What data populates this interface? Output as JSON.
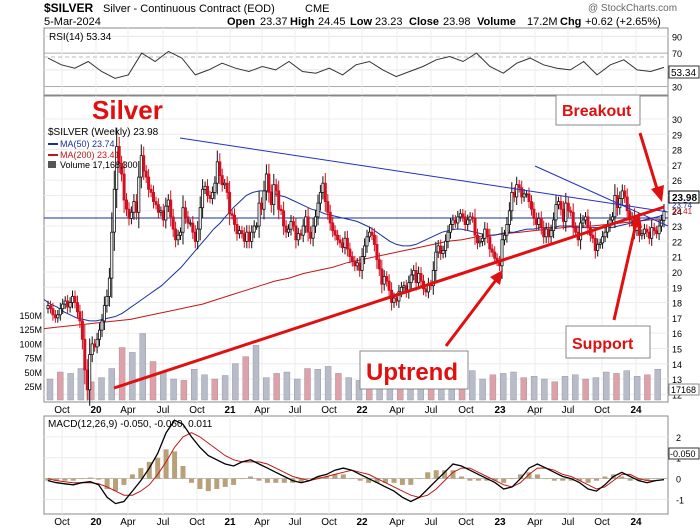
{
  "header": {
    "symbol": "$SILVER",
    "name": "Silver - Continuous Contract (EOD)",
    "exchange": "CME",
    "date": "5-Mar-2024",
    "open_label": "Open",
    "open": "23.37",
    "high_label": "High",
    "high": "24.45",
    "low_label": "Low",
    "low": "23.23",
    "close_label": "Close",
    "close": "23.98",
    "volume_label": "Volume",
    "volume": "17.2M",
    "chg_label": "Chg",
    "chg": "+0.62 (+2.65%)",
    "watermark": "@ StockCharts.com"
  },
  "colors": {
    "up": "#111111",
    "down": "#d01020",
    "ma50": "#1a2fa0",
    "ma200": "#c01818",
    "annotation": "#e01010",
    "volume_up": "#b8bcc8",
    "volume_down": "#e0a0a8",
    "rsi": "#333333",
    "macd": "#000000",
    "signal": "#c01818",
    "hist": "#b8a078"
  },
  "x_axis": {
    "labels": [
      "Oct",
      "20",
      "Apr",
      "Jul",
      "Oct",
      "21",
      "Apr",
      "Jul",
      "Oct",
      "22",
      "Apr",
      "Jul",
      "Oct",
      "23",
      "Apr",
      "Jul",
      "Oct",
      "24"
    ],
    "bold": [
      "20",
      "21",
      "22",
      "23",
      "24"
    ]
  },
  "chart_data": [
    {
      "type": "line",
      "panel": "RSI",
      "legend": "RSI(14) 53.34",
      "value_label": "53.34",
      "yticks": [
        90,
        70,
        50,
        30
      ],
      "ylim": [
        20,
        100
      ],
      "reference_levels": [
        30,
        70
      ],
      "values": [
        64,
        56,
        52,
        60,
        48,
        40,
        44,
        70,
        60,
        72,
        64,
        44,
        50,
        58,
        52,
        48,
        54,
        50,
        60,
        48,
        46,
        52,
        44,
        56,
        60,
        50,
        42,
        48,
        54,
        62,
        66,
        60,
        70,
        54,
        46,
        58,
        64,
        56,
        52,
        50,
        60,
        44,
        56,
        62,
        50,
        48,
        53
      ]
    },
    {
      "type": "candlestick",
      "panel": "Price",
      "title": "Silver",
      "legend": "$SILVER (Weekly) 23.98",
      "ma50_label": "MA(50) 23.74",
      "ma200_label": "MA(200) 23.41",
      "volume_label": "Volume 17,168,300",
      "last_price_label": "23.98",
      "ma_value_labels": [
        "23.74",
        "23.41"
      ],
      "volume_last_label": "17168",
      "price_ticks": [
        30,
        29,
        28,
        27,
        26,
        25,
        24,
        23,
        22,
        21,
        20,
        19,
        18,
        17,
        16,
        15,
        14,
        13,
        12
      ],
      "volume_ticks": [
        "150M",
        "125M",
        "100M",
        "75M",
        "50M",
        "25M"
      ],
      "ylim": [
        11.5,
        31.5
      ],
      "close": [
        17.8,
        17.6,
        17.2,
        17.0,
        17.2,
        17.6,
        17.9,
        18.1,
        17.7,
        18.0,
        18.4,
        18.0,
        17.4,
        16.8,
        15.6,
        13.6,
        12.3,
        14.6,
        15.3,
        15.1,
        15.6,
        16.2,
        16.8,
        17.8,
        18.4,
        19.6,
        22.6,
        25.4,
        28.2,
        27.1,
        26.4,
        24.7,
        24.1,
        23.5,
        23.9,
        24.6,
        23.9,
        26.2,
        27.6,
        26.6,
        26.2,
        25.4,
        25.2,
        24.6,
        24.4,
        23.9,
        24.0,
        23.4,
        24.3,
        24.7,
        23.6,
        22.8,
        22.1,
        22.4,
        22.6,
        24.2,
        23.6,
        23.2,
        23.2,
        22.6,
        22.0,
        22.8,
        24.2,
        25.4,
        25.6,
        25.0,
        24.8,
        25.2,
        25.8,
        27.2,
        26.3,
        25.7,
        25.8,
        25.2,
        23.8,
        23.7,
        23.1,
        22.5,
        22.7,
        22.5,
        22.0,
        22.6,
        22.0,
        22.6,
        23.0,
        23.0,
        24.5,
        24.1,
        25.3,
        26.4,
        25.2,
        24.4,
        25.7,
        25.3,
        24.1,
        24.0,
        23.0,
        22.6,
        22.8,
        23.3,
        23.0,
        22.1,
        22.5,
        22.4,
        23.0,
        23.6,
        22.6,
        22.2,
        23.0,
        23.6,
        24.5,
        25.2,
        25.8,
        24.6,
        23.9,
        23.2,
        22.7,
        22.4,
        22.1,
        21.9,
        21.6,
        22.2,
        21.5,
        21.0,
        20.7,
        20.4,
        20.6,
        20.1,
        21.0,
        21.7,
        22.3,
        22.6,
        22.4,
        21.8,
        20.8,
        20.2,
        19.2,
        19.7,
        19.4,
        18.8,
        18.0,
        18.3,
        18.1,
        18.7,
        19.0,
        19.1,
        18.7,
        19.3,
        19.8,
        20.1,
        19.3,
        19.9,
        19.4,
        18.9,
        18.7,
        19.2,
        19.1,
        20.1,
        21.3,
        21.7,
        21.2,
        21.4,
        22.0,
        22.6,
        23.1,
        23.4,
        23.2,
        23.6,
        23.8,
        23.6,
        23.1,
        23.4,
        23.6,
        23.5,
        22.4,
        21.9,
        22.0,
        22.2,
        22.8,
        22.3,
        21.5,
        21.3,
        20.9,
        20.7,
        20.4,
        22.1,
        22.4,
        23.1,
        24.0,
        25.2,
        24.9,
        25.7,
        25.5,
        24.9,
        25.1,
        25.1,
        24.6,
        24.1,
        23.5,
        23.1,
        23.5,
        22.9,
        22.3,
        22.8,
        22.3,
        22.7,
        23.4,
        24.4,
        24.6,
        24.1,
        23.3,
        24.5,
        24.0,
        23.9,
        22.9,
        22.6,
        22.1,
        23.2,
        23.4,
        23.6,
        22.9,
        22.4,
        22.2,
        21.4,
        21.8,
        21.9,
        22.3,
        22.6,
        23.0,
        23.4,
        23.6,
        25.0,
        24.2,
        24.8,
        25.3,
        24.9,
        24.0,
        23.4,
        23.6,
        22.7,
        23.0,
        22.4,
        22.5,
        22.8,
        22.6,
        22.2,
        22.9,
        22.7,
        22.5,
        23.0,
        23.37,
        23.98
      ],
      "ma50": [
        18.2,
        17.9,
        17.7,
        17.4,
        17.2,
        17.0,
        16.9,
        16.8,
        16.8,
        16.9,
        17.0,
        17.1,
        17.3,
        17.6,
        17.9,
        18.2,
        18.5,
        18.8,
        19.1,
        19.5,
        19.9,
        20.3,
        20.8,
        21.3,
        21.8,
        22.3,
        22.8,
        23.2,
        23.7,
        24.2,
        24.6,
        25.0,
        25.2,
        25.3,
        25.3,
        25.2,
        25.0,
        24.9,
        24.7,
        24.5,
        24.3,
        24.1,
        24.0,
        23.8,
        23.7,
        23.6,
        23.5,
        23.4,
        23.3,
        23.1,
        22.9,
        22.6,
        22.3,
        22.0,
        21.8,
        21.7,
        21.7,
        21.8,
        22.0,
        22.2,
        22.4,
        22.6,
        22.7,
        22.8,
        22.8,
        22.7,
        22.6,
        22.5,
        22.4,
        22.4,
        22.5,
        22.6,
        22.6,
        22.7,
        22.8,
        22.8,
        22.9,
        22.9,
        22.9,
        23.0,
        23.0,
        23.0,
        22.9,
        22.9,
        22.9,
        22.9,
        22.9,
        22.9,
        23.0,
        23.1,
        23.2,
        23.3,
        23.4,
        23.5,
        23.6,
        23.74
      ],
      "ma200": [
        16.3,
        16.4,
        16.5,
        16.6,
        16.7,
        16.8,
        16.9,
        17.1,
        17.3,
        17.5,
        17.7,
        17.9,
        18.2,
        18.5,
        18.8,
        19.1,
        19.4,
        19.6,
        19.9,
        20.1,
        20.3,
        20.6,
        20.8,
        21.0,
        21.2,
        21.4,
        21.6,
        21.8,
        22.0,
        22.1,
        22.3,
        22.4,
        22.5,
        22.6,
        22.7,
        22.8,
        22.9,
        23.0,
        23.0,
        23.1,
        23.2,
        23.3,
        23.4,
        23.41
      ],
      "volume_relative": [
        30,
        40,
        38,
        45,
        26,
        32,
        45,
        75,
        68,
        95,
        55,
        40,
        30,
        28,
        44,
        36,
        30,
        35,
        52,
        62,
        78,
        32,
        38,
        40,
        30,
        45,
        44,
        48,
        38,
        32,
        28,
        34,
        30,
        36,
        40,
        35,
        34,
        38,
        30,
        28,
        40,
        42,
        30,
        36,
        38,
        40,
        32,
        34,
        30,
        26,
        34,
        36,
        30,
        32,
        40,
        38,
        42,
        34,
        36,
        44
      ]
    },
    {
      "type": "line",
      "panel": "MACD",
      "legend": "MACD(12,26,9) -0.050, -0.060, 0.011",
      "value_label": "-0.050",
      "yticks": [
        2,
        1,
        0,
        -1
      ],
      "ylim": [
        -1.7,
        3.0
      ],
      "macd": [
        -0.1,
        -0.2,
        -0.25,
        -0.3,
        -0.2,
        -0.15,
        -0.3,
        -0.9,
        -1.2,
        -1.1,
        -0.6,
        -0.1,
        0.5,
        1.2,
        2.2,
        2.8,
        2.6,
        2.0,
        1.5,
        1.1,
        0.9,
        0.7,
        0.6,
        0.8,
        0.9,
        0.7,
        0.5,
        0.3,
        0.1,
        -0.1,
        -0.2,
        -0.1,
        0.1,
        0.2,
        0.4,
        0.5,
        0.4,
        0.2,
        0.0,
        -0.2,
        -0.4,
        -0.6,
        -0.9,
        -1.1,
        -0.9,
        -0.5,
        -0.1,
        0.3,
        0.7,
        0.6,
        0.4,
        0.2,
        0.0,
        -0.2,
        -0.5,
        -0.4,
        0.0,
        0.5,
        0.7,
        0.5,
        0.3,
        0.1,
        0.0,
        -0.2,
        -0.5,
        -0.6,
        -0.3,
        0.1,
        0.3,
        0.1,
        -0.1,
        -0.2,
        -0.1,
        -0.05
      ],
      "signal": [
        0.0,
        -0.1,
        -0.15,
        -0.2,
        -0.2,
        -0.2,
        -0.25,
        -0.4,
        -0.6,
        -0.8,
        -0.8,
        -0.6,
        -0.3,
        0.2,
        0.8,
        1.5,
        2.0,
        2.2,
        2.0,
        1.7,
        1.4,
        1.1,
        0.9,
        0.8,
        0.8,
        0.8,
        0.7,
        0.5,
        0.3,
        0.1,
        0.0,
        -0.1,
        0.0,
        0.1,
        0.2,
        0.3,
        0.4,
        0.3,
        0.2,
        0.0,
        -0.2,
        -0.4,
        -0.6,
        -0.8,
        -0.9,
        -0.8,
        -0.5,
        -0.1,
        0.3,
        0.5,
        0.5,
        0.3,
        0.1,
        -0.1,
        -0.3,
        -0.4,
        -0.2,
        0.2,
        0.5,
        0.5,
        0.4,
        0.2,
        0.1,
        -0.1,
        -0.3,
        -0.5,
        -0.4,
        -0.1,
        0.2,
        0.2,
        0.0,
        -0.1,
        -0.1,
        -0.06
      ]
    }
  ],
  "annotations": {
    "breakout": "Breakout",
    "uptrend": "Uptrend",
    "support": "Support"
  }
}
